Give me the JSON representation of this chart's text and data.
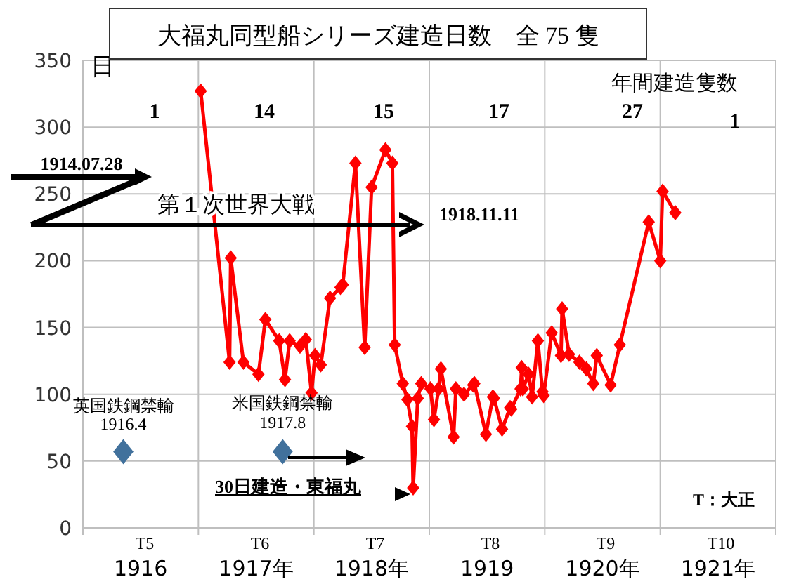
{
  "chart_data": {
    "type": "line",
    "title": "大福丸同型船シリーズ建造日数　全 75 隻",
    "ylabel": "日",
    "xlim": [
      1916,
      1922
    ],
    "ylim": [
      0,
      350
    ],
    "yticks": [
      0,
      50,
      100,
      150,
      200,
      250,
      300,
      350
    ],
    "xticks": [
      {
        "value": 1916,
        "label": null
      },
      {
        "value": 1916.5,
        "label": "1916"
      },
      {
        "value": 1917,
        "label": null
      },
      {
        "value": 1917.5,
        "label": "1917年"
      },
      {
        "value": 1918,
        "label": null
      },
      {
        "value": 1918.5,
        "label": "1918年"
      },
      {
        "value": 1919,
        "label": null
      },
      {
        "value": 1919.5,
        "label": "1919"
      },
      {
        "value": 1920,
        "label": null
      },
      {
        "value": 1920.5,
        "label": "1920年"
      },
      {
        "value": 1921,
        "label": null
      },
      {
        "value": 1921.5,
        "label": "1921年"
      },
      {
        "value": 1922,
        "label": null
      }
    ],
    "grid": true,
    "marker": "diamond",
    "line_style": "solid",
    "series": [
      {
        "color": "#ff0000",
        "x": [
          1917.02,
          1917.27,
          1917.28,
          1917.39,
          1917.52,
          1917.58,
          1917.7,
          1917.75,
          1917.79,
          1917.88,
          1917.93,
          1917.98,
          1918.01,
          1918.06,
          1918.14,
          1918.23,
          1918.25,
          1918.36,
          1918.44,
          1918.5,
          1918.62,
          1918.68,
          1918.7,
          1918.77,
          1918.81,
          1918.85,
          1918.86,
          1918.9,
          1918.93,
          1919.01,
          1919.04,
          1919.08,
          1919.1,
          1919.21,
          1919.23,
          1919.3,
          1919.38,
          1919.39,
          1919.49,
          1919.55,
          1919.56,
          1919.63,
          1919.7,
          1919.71,
          1919.79,
          1919.8,
          1919.81,
          1919.86,
          1919.89,
          1919.94,
          1919.98,
          1919.99,
          1920.06,
          1920.14,
          1920.15,
          1920.21,
          1920.3,
          1920.36,
          1920.42,
          1920.45,
          1920.57,
          1920.65,
          1920.9,
          1921.0,
          1921.02,
          1921.13
        ],
        "values": [
          327,
          124,
          202,
          124,
          115,
          156,
          140,
          111,
          140,
          136,
          141,
          101,
          129,
          122,
          172,
          180,
          182,
          273,
          135,
          255,
          283,
          273,
          137,
          108,
          96,
          76,
          30,
          97,
          108,
          104,
          81,
          104,
          119,
          68,
          104,
          100,
          107,
          108,
          70,
          98,
          97,
          74,
          90,
          89,
          104,
          120,
          104,
          115,
          98,
          140,
          102,
          99,
          146,
          129,
          164,
          130,
          124,
          119,
          108,
          129,
          107,
          137,
          229,
          200,
          252,
          236
        ]
      },
      {
        "type": "scatter",
        "color": "#41719c",
        "x": [
          1916.35,
          1917.73
        ],
        "values": [
          57,
          57
        ]
      }
    ],
    "annotations": [
      "1914.07.28",
      "第１次世界大戦",
      "1918.11.11",
      {
        "text": "英国鉄鋼禁輸\n1916.4",
        "x": 1916.35,
        "y": 57
      },
      {
        "text": "米国鉄鋼禁輸\n1917.8",
        "x": 1917.73,
        "y": 57
      },
      "30日建造・東福丸",
      "T：大正",
      "年間建造隻数",
      "1",
      "14",
      "15",
      "17",
      "27",
      "1",
      "T5",
      "T6",
      "T7",
      "T8",
      "T9",
      "T10"
    ]
  }
}
